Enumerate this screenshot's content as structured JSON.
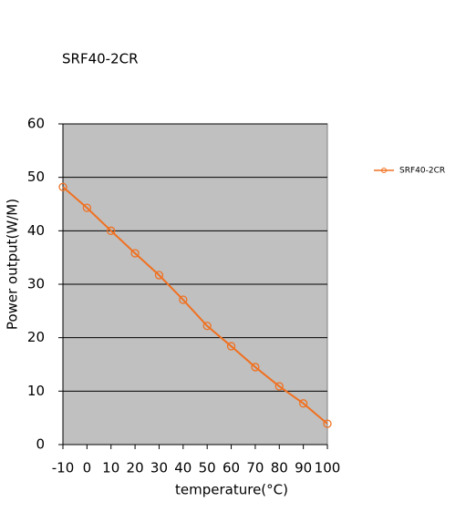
{
  "chart_data": {
    "type": "line",
    "title": "SRF40-2CR",
    "x_label": "temperature(°C)",
    "y_label": "Power output(W/M)",
    "x": [
      -10,
      0,
      10,
      20,
      30,
      40,
      50,
      60,
      70,
      80,
      90,
      100
    ],
    "series": [
      {
        "name": "SRF40-2CR",
        "color": "#f07020",
        "values": [
          48.2,
          44.3,
          40.0,
          35.8,
          31.7,
          27.1,
          22.2,
          18.4,
          14.5,
          10.9,
          7.7,
          3.9
        ]
      }
    ],
    "xlim": [
      -10,
      100
    ],
    "xticks": [
      -10,
      0,
      10,
      20,
      30,
      40,
      50,
      60,
      70,
      80,
      90,
      100
    ],
    "ylim": [
      0,
      60
    ],
    "yticks": [
      0,
      10,
      20,
      30,
      40,
      50,
      60
    ],
    "grid": true,
    "legend": "right",
    "plot_background": "#c0c0c0"
  }
}
